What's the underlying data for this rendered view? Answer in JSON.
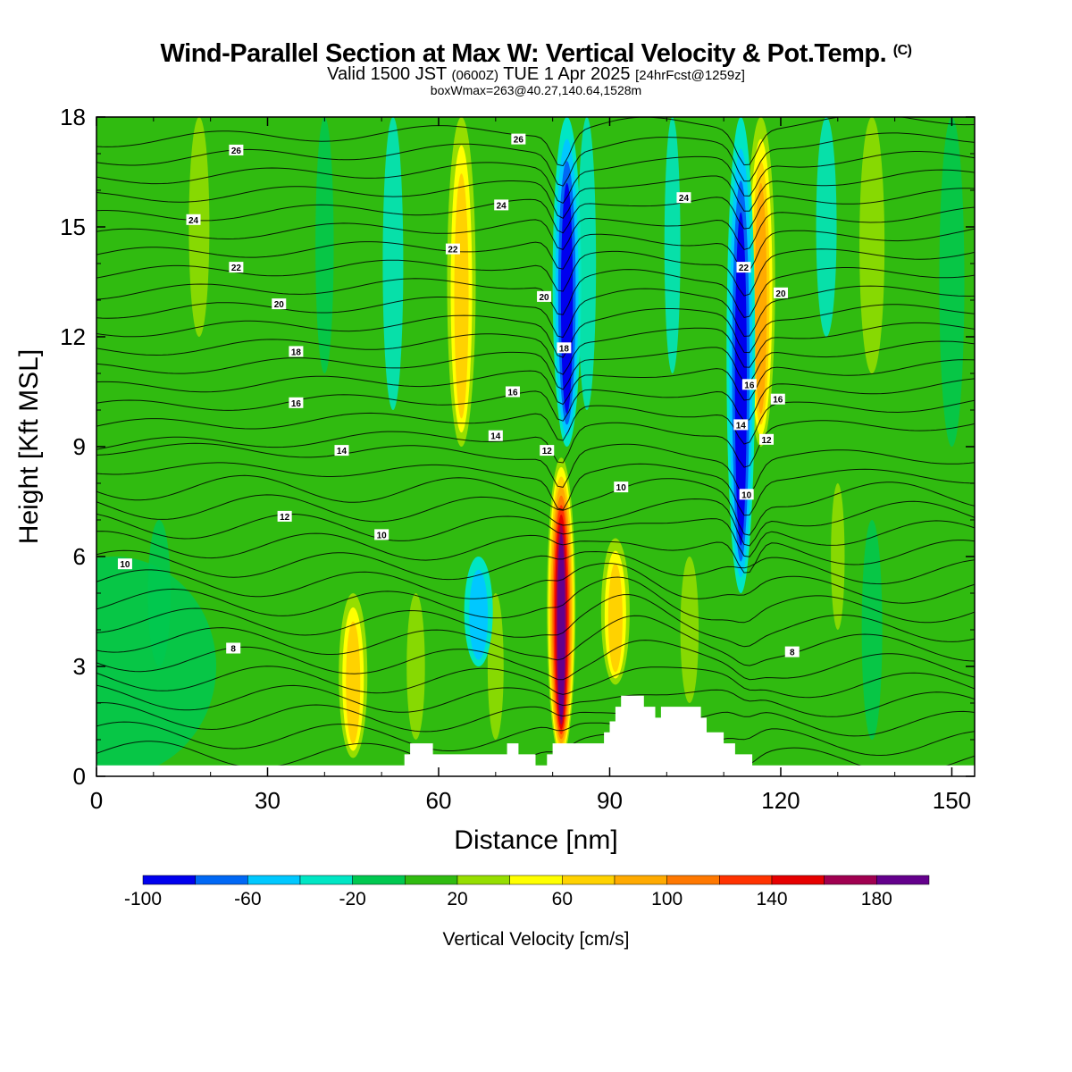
{
  "header": {
    "title": "Wind-Parallel Section at Max W: Vertical Velocity & Pot.Temp.",
    "copyright": "(C)",
    "valid_prefix": "Valid 1500 JST",
    "valid_z": "(0600Z)",
    "valid_date": "TUE 1 Apr 2025",
    "forecast": "[24hrFcst@1259z]",
    "boxwmax": "boxWmax=263@40.27,140.64,1528m"
  },
  "chart_data": {
    "type": "heatmap",
    "xlabel": "Distance [nm]",
    "ylabel": "Height [Kft MSL]",
    "xlim": [
      0,
      154
    ],
    "ylim": [
      0,
      18
    ],
    "x_ticks": [
      0,
      30,
      60,
      90,
      120,
      150
    ],
    "y_ticks": [
      0,
      3,
      6,
      9,
      12,
      15,
      18
    ],
    "colorbar": {
      "title": "Vertical Velocity [cm/s]",
      "boundaries": [
        -100,
        -80,
        -60,
        -40,
        -20,
        0,
        20,
        40,
        60,
        80,
        100,
        120,
        140,
        160,
        180,
        200
      ],
      "tick_labels": [
        -100,
        -60,
        -20,
        20,
        60,
        100,
        140,
        180
      ],
      "colors": [
        "#0000ee",
        "#0068f5",
        "#00c8ff",
        "#00e6c4",
        "#00c850",
        "#30bb10",
        "#96de00",
        "#ffff00",
        "#ffd200",
        "#ffaa00",
        "#ff7800",
        "#ff3200",
        "#e60000",
        "#a00050",
        "#64008c"
      ]
    },
    "background_color": "#30bb10",
    "updrafts": [
      {
        "x": 64,
        "y_bottom": 9,
        "y_top": 18,
        "w": 60
      },
      {
        "x": 81.5,
        "y_bottom": 0.5,
        "y_top": 8.7,
        "w": 190
      },
      {
        "x": 91,
        "y_bottom": 2.5,
        "y_top": 6.5,
        "w": 60
      },
      {
        "x": 116.5,
        "y_bottom": 9,
        "y_top": 18,
        "w": 85
      },
      {
        "x": 45,
        "y_bottom": 0.5,
        "y_top": 5,
        "w": 70
      }
    ],
    "downdrafts": [
      {
        "x": 82.5,
        "y_bottom": 9,
        "y_top": 18,
        "w": -90
      },
      {
        "x": 113,
        "y_bottom": 5,
        "y_top": 18,
        "w": -100
      },
      {
        "x": 67,
        "y_bottom": 3,
        "y_top": 6,
        "w": -40
      }
    ],
    "terrain": [
      [
        0,
        0.3
      ],
      [
        52,
        0.3
      ],
      [
        54,
        0.6
      ],
      [
        55,
        0.9
      ],
      [
        58,
        0.9
      ],
      [
        59,
        0.6
      ],
      [
        71,
        0.6
      ],
      [
        72,
        0.9
      ],
      [
        73,
        0.9
      ],
      [
        74,
        0.6
      ],
      [
        76,
        0.6
      ],
      [
        77,
        0.3
      ],
      [
        79,
        0.6
      ],
      [
        80,
        0.9
      ],
      [
        87,
        0.9
      ],
      [
        89,
        1.2
      ],
      [
        90,
        1.5
      ],
      [
        91,
        1.9
      ],
      [
        92,
        2.2
      ],
      [
        95,
        2.2
      ],
      [
        96,
        1.9
      ],
      [
        98,
        1.6
      ],
      [
        99,
        1.9
      ],
      [
        104,
        1.9
      ],
      [
        106,
        1.6
      ],
      [
        107,
        1.2
      ],
      [
        110,
        0.9
      ],
      [
        112,
        0.6
      ],
      [
        114,
        0.6
      ],
      [
        115,
        0.3
      ],
      [
        154,
        0.3
      ]
    ],
    "theta_labels": [
      {
        "text": "26",
        "x": 24.5,
        "y": 17.1
      },
      {
        "text": "24",
        "x": 17,
        "y": 15.2
      },
      {
        "text": "22",
        "x": 24.5,
        "y": 13.9
      },
      {
        "text": "20",
        "x": 32,
        "y": 12.9
      },
      {
        "text": "18",
        "x": 35,
        "y": 11.6
      },
      {
        "text": "16",
        "x": 35,
        "y": 10.2
      },
      {
        "text": "14",
        "x": 43,
        "y": 8.9
      },
      {
        "text": "12",
        "x": 33,
        "y": 7.1
      },
      {
        "text": "10",
        "x": 5,
        "y": 5.8
      },
      {
        "text": "10",
        "x": 50,
        "y": 6.6
      },
      {
        "text": "8",
        "x": 24,
        "y": 3.5
      },
      {
        "text": "26",
        "x": 74,
        "y": 17.4
      },
      {
        "text": "24",
        "x": 71,
        "y": 15.6
      },
      {
        "text": "22",
        "x": 62.5,
        "y": 14.4
      },
      {
        "text": "20",
        "x": 78.5,
        "y": 13.1
      },
      {
        "text": "18",
        "x": 82,
        "y": 11.7
      },
      {
        "text": "16",
        "x": 73,
        "y": 10.5
      },
      {
        "text": "14",
        "x": 70,
        "y": 9.3
      },
      {
        "text": "12",
        "x": 79,
        "y": 8.9
      },
      {
        "text": "10",
        "x": 92,
        "y": 7.9
      },
      {
        "text": "24",
        "x": 103,
        "y": 15.8
      },
      {
        "text": "22",
        "x": 113.5,
        "y": 13.9
      },
      {
        "text": "20",
        "x": 120,
        "y": 13.2
      },
      {
        "text": "16",
        "x": 114.5,
        "y": 10.7
      },
      {
        "text": "16",
        "x": 119.5,
        "y": 10.3
      },
      {
        "text": "14",
        "x": 113,
        "y": 9.6
      },
      {
        "text": "12",
        "x": 117.5,
        "y": 9.2
      },
      {
        "text": "10",
        "x": 114,
        "y": 7.7
      },
      {
        "text": "8",
        "x": 122,
        "y": 3.4
      }
    ]
  }
}
